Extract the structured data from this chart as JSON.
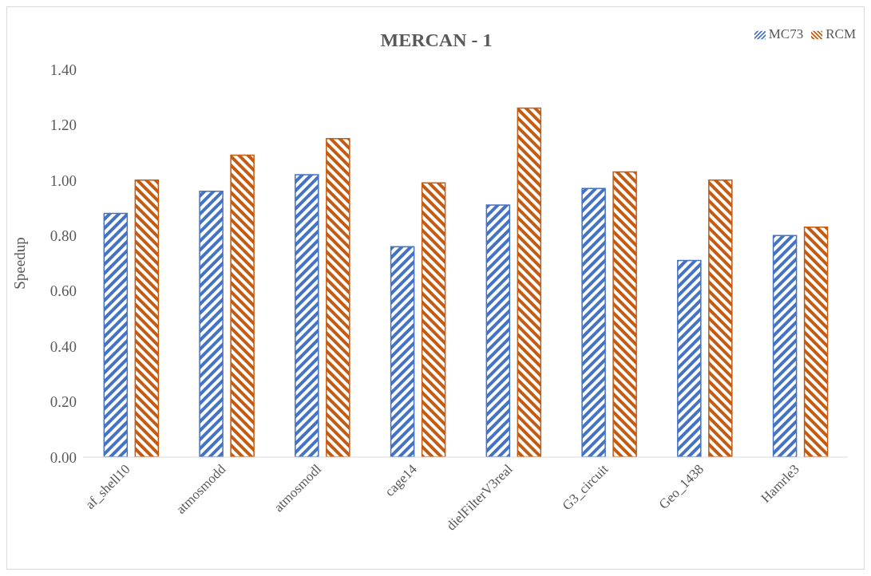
{
  "chart_data": {
    "type": "bar",
    "title": "MERCAN - 1",
    "ylabel": "Speedup",
    "categories": [
      "af_shell10",
      "atmosmodd",
      "atmosmodl",
      "cage14",
      "dielFilterV3real",
      "G3_circuit",
      "Geo_1438",
      "Hamrle3"
    ],
    "series": [
      {
        "name": "MC73",
        "color": "#4472c4",
        "values": [
          0.88,
          0.96,
          1.02,
          0.76,
          0.91,
          0.97,
          0.71,
          0.8
        ]
      },
      {
        "name": "RCM",
        "color": "#c55a11",
        "values": [
          1.0,
          1.09,
          1.15,
          0.99,
          1.26,
          1.03,
          1.0,
          0.83
        ]
      }
    ],
    "ylim": [
      0,
      1.4
    ],
    "yticks": [
      {
        "value": 0,
        "label": "0.00"
      },
      {
        "value": 0.2,
        "label": "0.20"
      },
      {
        "value": 0.4,
        "label": "0.40"
      },
      {
        "value": 0.6,
        "label": "0.60"
      },
      {
        "value": 0.8,
        "label": "0.80"
      },
      {
        "value": 1.0,
        "label": "1.00"
      },
      {
        "value": 1.2,
        "label": "1.20"
      },
      {
        "value": 1.4,
        "label": "1.40"
      }
    ],
    "grid": false,
    "legend": "top right"
  }
}
